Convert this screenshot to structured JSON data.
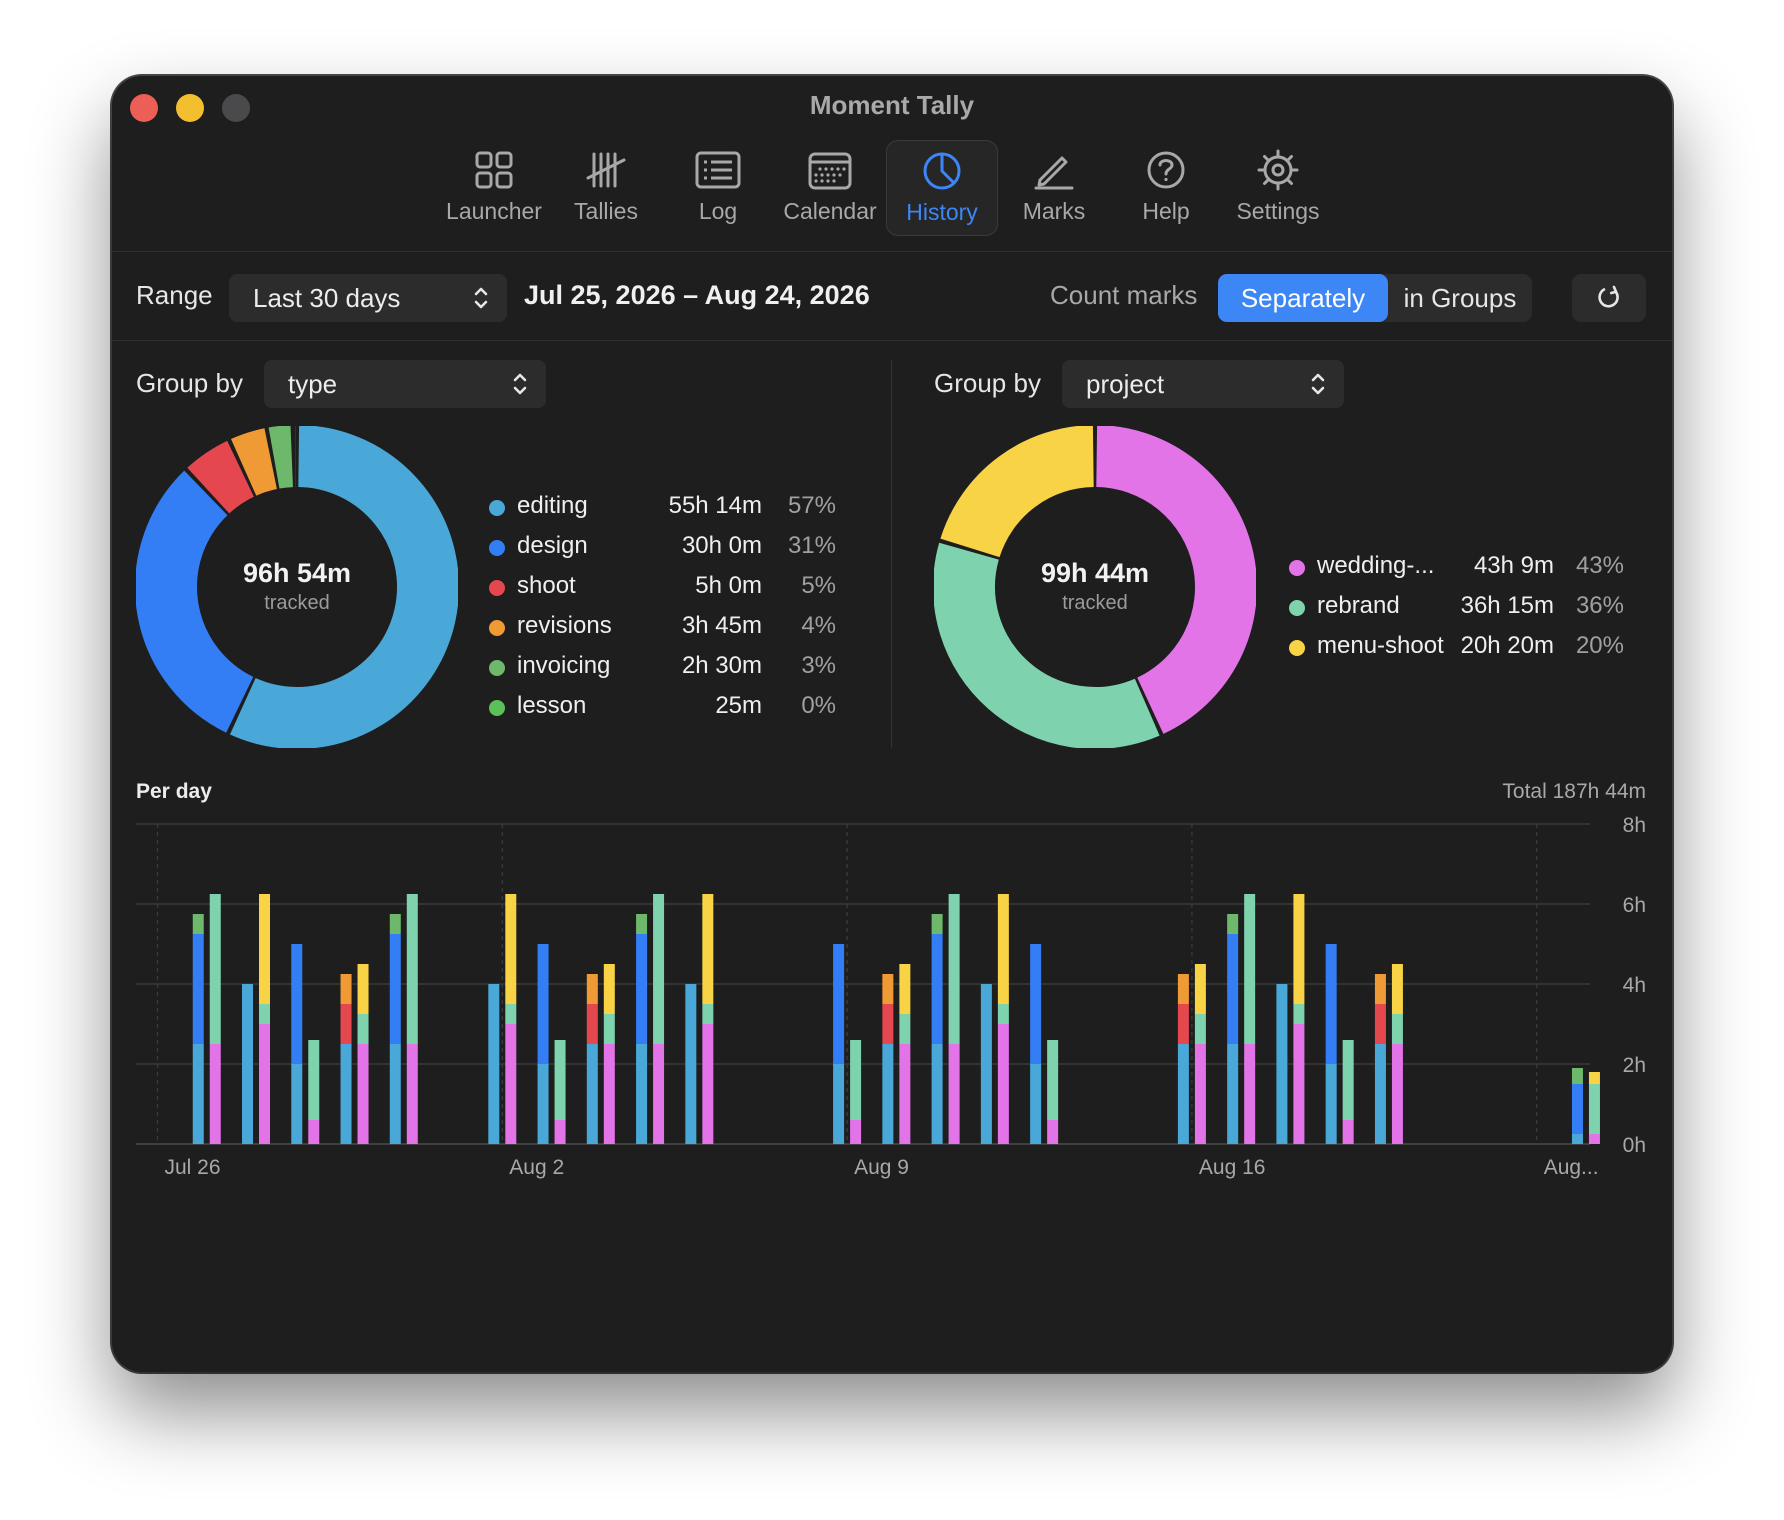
{
  "window": {
    "title": "Moment Tally",
    "traffic_lights": [
      {
        "name": "close",
        "color": "#ec5f57"
      },
      {
        "name": "minimize",
        "color": "#f4bf2f"
      },
      {
        "name": "zoom",
        "color": "#4a4a4c"
      }
    ]
  },
  "toolbar": {
    "accent": "#3d86f5",
    "items": [
      {
        "label": "Launcher",
        "icon": "grid-icon",
        "active": false
      },
      {
        "label": "Tallies",
        "icon": "tally-marks-icon",
        "active": false
      },
      {
        "label": "Log",
        "icon": "list-icon",
        "active": false
      },
      {
        "label": "Calendar",
        "icon": "calendar-icon",
        "active": false
      },
      {
        "label": "History",
        "icon": "pie-chart-icon",
        "active": true
      },
      {
        "label": "Marks",
        "icon": "pencil-icon",
        "active": false
      },
      {
        "label": "Help",
        "icon": "question-icon",
        "active": false
      },
      {
        "label": "Settings",
        "icon": "gear-icon",
        "active": false
      }
    ]
  },
  "range": {
    "label": "Range",
    "selected": "Last 30 days",
    "dates": "Jul 25, 2026 – Aug 24, 2026",
    "count_marks_label": "Count marks",
    "count_options": [
      "Separately",
      "in Groups"
    ],
    "count_selected": "Separately",
    "refresh_icon": "refresh-icon"
  },
  "left_panel": {
    "group_by_label": "Group by",
    "group_by": "type",
    "center_value": "96h 54m",
    "center_caption": "tracked"
  },
  "right_panel": {
    "group_by_label": "Group by",
    "group_by": "project",
    "center_value": "99h 44m",
    "center_caption": "tracked"
  },
  "per_day": {
    "title": "Per day",
    "total": "Total 187h 44m"
  },
  "chart_data": [
    {
      "type": "pie",
      "donut": true,
      "slices": [
        {
          "label": "editing",
          "duration": "55h 14m",
          "percent": "57%",
          "value": 55.23,
          "color": "#4aa8d8"
        },
        {
          "label": "design",
          "duration": "30h 0m",
          "percent": "31%",
          "value": 30.0,
          "color": "#347ef5"
        },
        {
          "label": "shoot",
          "duration": "5h 0m",
          "percent": "5%",
          "value": 5.0,
          "color": "#e5474f"
        },
        {
          "label": "revisions",
          "duration": "3h 45m",
          "percent": "4%",
          "value": 3.75,
          "color": "#f09a35"
        },
        {
          "label": "invoicing",
          "duration": "2h 30m",
          "percent": "3%",
          "value": 2.5,
          "color": "#6db86a"
        },
        {
          "label": "lesson",
          "duration": "25m",
          "percent": "0%",
          "value": 0.42,
          "color": "#5cc05a"
        }
      ]
    },
    {
      "type": "pie",
      "donut": true,
      "slices": [
        {
          "label": "wedding-...",
          "duration": "43h 9m",
          "percent": "43%",
          "value": 43.15,
          "color": "#e274e8"
        },
        {
          "label": "rebrand",
          "duration": "36h 15m",
          "percent": "36%",
          "value": 36.25,
          "color": "#7ed3ae"
        },
        {
          "label": "menu-shoot",
          "duration": "20h 20m",
          "percent": "20%",
          "value": 20.33,
          "color": "#f7d345"
        }
      ]
    },
    {
      "type": "bar",
      "stacked": true,
      "x_tick_labels": [
        "Jul 26",
        "Aug 2",
        "Aug 9",
        "Aug 16",
        "Aug..."
      ],
      "y_tick_labels": [
        "8h",
        "6h",
        "4h",
        "2h",
        "0h"
      ],
      "ylim": [
        0,
        8
      ],
      "grid": true,
      "colors": {
        "editing": "#4aa8d8",
        "design": "#347ef5",
        "shoot": "#e5474f",
        "revisions": "#f09a35",
        "invoicing": "#6db86a",
        "wedding": "#e274e8",
        "rebrand": "#7ed3ae",
        "menu-shoot": "#f7d345"
      },
      "days": [
        {
          "type": [],
          "project": []
        },
        {
          "type": [],
          "project": []
        },
        {
          "type": [
            [
              "editing",
              2.5
            ],
            [
              "design",
              2.75
            ],
            [
              "invoicing",
              0.5
            ]
          ],
          "project": [
            [
              "wedding",
              2.5
            ],
            [
              "rebrand",
              3.75
            ]
          ]
        },
        {
          "type": [
            [
              "editing",
              4.0
            ]
          ],
          "project": [
            [
              "wedding",
              3.0
            ],
            [
              "rebrand",
              0.5
            ],
            [
              "menu-shoot",
              2.75
            ]
          ]
        },
        {
          "type": [
            [
              "editing",
              2.0
            ],
            [
              "design",
              3.0
            ]
          ],
          "project": [
            [
              "wedding",
              0.6
            ],
            [
              "rebrand",
              2.0
            ]
          ]
        },
        {
          "type": [
            [
              "editing",
              2.5
            ],
            [
              "shoot",
              1.0
            ],
            [
              "revisions",
              0.75
            ]
          ],
          "project": [
            [
              "wedding",
              2.5
            ],
            [
              "rebrand",
              0.75
            ],
            [
              "menu-shoot",
              1.25
            ]
          ]
        },
        {
          "type": [
            [
              "editing",
              2.5
            ],
            [
              "design",
              2.75
            ],
            [
              "invoicing",
              0.5
            ]
          ],
          "project": [
            [
              "wedding",
              2.5
            ],
            [
              "rebrand",
              3.75
            ]
          ]
        },
        {
          "type": [],
          "project": []
        },
        {
          "type": [
            [
              "editing",
              4.0
            ]
          ],
          "project": [
            [
              "wedding",
              3.0
            ],
            [
              "rebrand",
              0.5
            ],
            [
              "menu-shoot",
              2.75
            ]
          ]
        },
        {
          "type": [
            [
              "editing",
              2.0
            ],
            [
              "design",
              3.0
            ]
          ],
          "project": [
            [
              "wedding",
              0.6
            ],
            [
              "rebrand",
              2.0
            ]
          ]
        },
        {
          "type": [
            [
              "editing",
              2.5
            ],
            [
              "shoot",
              1.0
            ],
            [
              "revisions",
              0.75
            ]
          ],
          "project": [
            [
              "wedding",
              2.5
            ],
            [
              "rebrand",
              0.75
            ],
            [
              "menu-shoot",
              1.25
            ]
          ]
        },
        {
          "type": [
            [
              "editing",
              2.5
            ],
            [
              "design",
              2.75
            ],
            [
              "invoicing",
              0.5
            ]
          ],
          "project": [
            [
              "wedding",
              2.5
            ],
            [
              "rebrand",
              3.75
            ]
          ]
        },
        {
          "type": [
            [
              "editing",
              4.0
            ]
          ],
          "project": [
            [
              "wedding",
              3.0
            ],
            [
              "rebrand",
              0.5
            ],
            [
              "menu-shoot",
              2.75
            ]
          ]
        },
        {
          "type": [],
          "project": []
        },
        {
          "type": [],
          "project": []
        },
        {
          "type": [
            [
              "editing",
              2.0
            ],
            [
              "design",
              3.0
            ]
          ],
          "project": [
            [
              "wedding",
              0.6
            ],
            [
              "rebrand",
              2.0
            ]
          ]
        },
        {
          "type": [
            [
              "editing",
              2.5
            ],
            [
              "shoot",
              1.0
            ],
            [
              "revisions",
              0.75
            ]
          ],
          "project": [
            [
              "wedding",
              2.5
            ],
            [
              "rebrand",
              0.75
            ],
            [
              "menu-shoot",
              1.25
            ]
          ]
        },
        {
          "type": [
            [
              "editing",
              2.5
            ],
            [
              "design",
              2.75
            ],
            [
              "invoicing",
              0.5
            ]
          ],
          "project": [
            [
              "wedding",
              2.5
            ],
            [
              "rebrand",
              3.75
            ]
          ]
        },
        {
          "type": [
            [
              "editing",
              4.0
            ]
          ],
          "project": [
            [
              "wedding",
              3.0
            ],
            [
              "rebrand",
              0.5
            ],
            [
              "menu-shoot",
              2.75
            ]
          ]
        },
        {
          "type": [
            [
              "editing",
              2.0
            ],
            [
              "design",
              3.0
            ]
          ],
          "project": [
            [
              "wedding",
              0.6
            ],
            [
              "rebrand",
              2.0
            ]
          ]
        },
        {
          "type": [],
          "project": []
        },
        {
          "type": [],
          "project": []
        },
        {
          "type": [
            [
              "editing",
              2.5
            ],
            [
              "shoot",
              1.0
            ],
            [
              "revisions",
              0.75
            ]
          ],
          "project": [
            [
              "wedding",
              2.5
            ],
            [
              "rebrand",
              0.75
            ],
            [
              "menu-shoot",
              1.25
            ]
          ]
        },
        {
          "type": [
            [
              "editing",
              2.5
            ],
            [
              "design",
              2.75
            ],
            [
              "invoicing",
              0.5
            ]
          ],
          "project": [
            [
              "wedding",
              2.5
            ],
            [
              "rebrand",
              3.75
            ]
          ]
        },
        {
          "type": [
            [
              "editing",
              4.0
            ]
          ],
          "project": [
            [
              "wedding",
              3.0
            ],
            [
              "rebrand",
              0.5
            ],
            [
              "menu-shoot",
              2.75
            ]
          ]
        },
        {
          "type": [
            [
              "editing",
              2.0
            ],
            [
              "design",
              3.0
            ]
          ],
          "project": [
            [
              "wedding",
              0.6
            ],
            [
              "rebrand",
              2.0
            ]
          ]
        },
        {
          "type": [
            [
              "editing",
              2.5
            ],
            [
              "shoot",
              1.0
            ],
            [
              "revisions",
              0.75
            ]
          ],
          "project": [
            [
              "wedding",
              2.5
            ],
            [
              "rebrand",
              0.75
            ],
            [
              "menu-shoot",
              1.25
            ]
          ]
        },
        {
          "type": [],
          "project": []
        },
        {
          "type": [],
          "project": []
        },
        {
          "type": [],
          "project": []
        },
        {
          "type": [
            [
              "editing",
              0.25
            ],
            [
              "design",
              1.25
            ],
            [
              "invoicing",
              0.4
            ]
          ],
          "project": [
            [
              "wedding",
              0.25
            ],
            [
              "rebrand",
              1.25
            ],
            [
              "menu-shoot",
              0.3
            ]
          ]
        }
      ]
    }
  ]
}
